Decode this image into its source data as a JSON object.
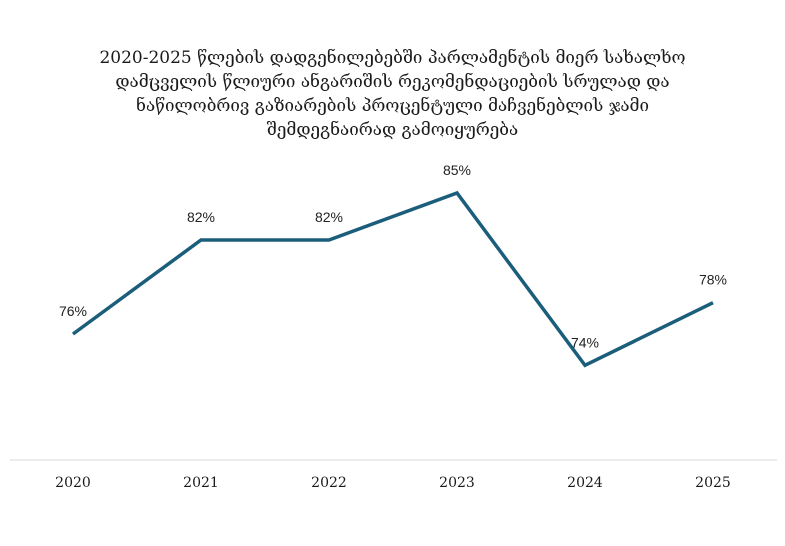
{
  "chart_data": {
    "type": "line",
    "title_lines": [
      "2020-2025 წლების დადგენილებებში პარლამენტის მიერ სახალხო",
      "დამცველის წლიური ანგარიშის რეკომენდაციების სრულად და",
      "ნაწილობრივ გაზიარების პროცენტული მაჩვენებლის ჯამი",
      "შემდეგნაირად გამოიყურება"
    ],
    "categories": [
      "2020",
      "2021",
      "2022",
      "2023",
      "2024",
      "2025"
    ],
    "series": [
      {
        "values": [
          76,
          82,
          82,
          85,
          74,
          78
        ],
        "labels": [
          "76%",
          "82%",
          "82%",
          "85%",
          "74%",
          "78%"
        ],
        "color": "#1b5e7b"
      }
    ],
    "xlabel": "",
    "ylabel": "",
    "grid": false,
    "legend": "none"
  }
}
